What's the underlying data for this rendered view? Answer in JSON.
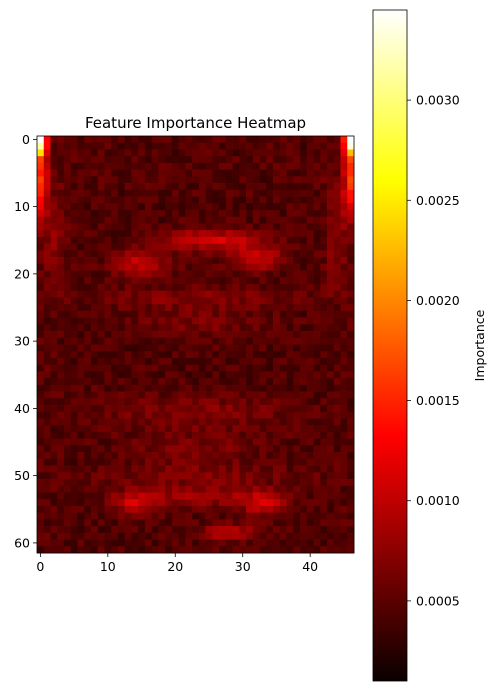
{
  "chart_data": {
    "type": "heatmap",
    "title": "Feature Importance Heatmap",
    "xlabel": "",
    "ylabel": "",
    "colorbar_label": "Importance",
    "colormap": "hot",
    "grid": false,
    "rows": 62,
    "cols": 47,
    "xlim": [
      -0.5,
      46.5
    ],
    "ylim": [
      61.5,
      -0.5
    ],
    "x_ticks": [
      0,
      10,
      20,
      30,
      40
    ],
    "x_tick_labels": [
      "0",
      "10",
      "20",
      "30",
      "40"
    ],
    "y_ticks": [
      0,
      10,
      20,
      30,
      40,
      50,
      60
    ],
    "y_tick_labels": [
      "0",
      "10",
      "20",
      "30",
      "40",
      "50",
      "60"
    ],
    "value_range": [
      0.0001,
      0.00345
    ],
    "colorbar_ticks": [
      0.0005,
      0.001,
      0.0015,
      0.002,
      0.0025,
      0.003
    ],
    "colorbar_tick_labels": [
      "0.0005",
      "0.0010",
      "0.0015",
      "0.0020",
      "0.0025",
      "0.0030"
    ],
    "background_value": 0.0004,
    "hotspots": [
      {
        "row": 0,
        "col": 0,
        "value": 0.0032
      },
      {
        "row": 1,
        "col": 0,
        "value": 0.0028
      },
      {
        "row": 2,
        "col": 0,
        "value": 0.0022
      },
      {
        "row": 0,
        "col": 46,
        "value": 0.0032
      },
      {
        "row": 1,
        "col": 46,
        "value": 0.0028
      },
      {
        "row": 2,
        "col": 46,
        "value": 0.0022
      },
      {
        "row": 15,
        "col": 26,
        "value": 0.0012
      },
      {
        "row": 18,
        "col": 16,
        "value": 0.0011
      },
      {
        "row": 18,
        "col": 33,
        "value": 0.0011
      },
      {
        "row": 54,
        "col": 14,
        "value": 0.0011
      },
      {
        "row": 54,
        "col": 33,
        "value": 0.0011
      },
      {
        "row": 58,
        "col": 28,
        "value": 0.001
      }
    ]
  }
}
